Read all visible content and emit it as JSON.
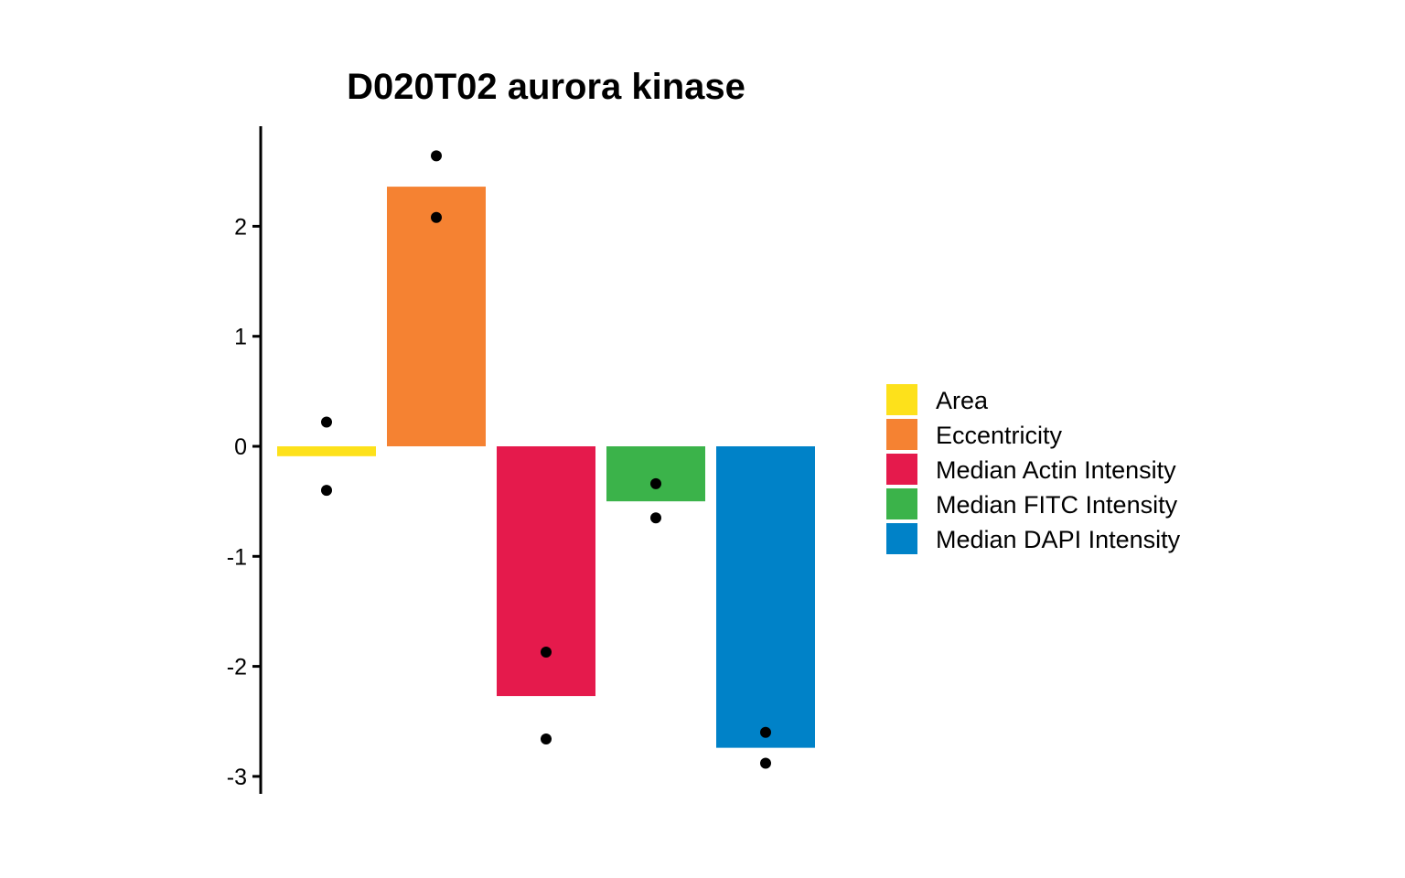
{
  "chart_data": {
    "type": "bar",
    "title": "D020T02 aurora kinase",
    "xlabel": "",
    "ylabel": "",
    "ylim": [
      -3.3,
      2.9
    ],
    "yticks": [
      2,
      1,
      0,
      -1,
      -2,
      -3
    ],
    "ytick_labels": [
      "2",
      "1",
      "0",
      "-1",
      "-2",
      "-3"
    ],
    "grid": false,
    "legend_position": "right",
    "categories": [
      "Area",
      "Eccentricity",
      "Median Actin Intensity",
      "Median FITC Intensity",
      "Median DAPI Intensity"
    ],
    "values": [
      -0.09,
      2.36,
      -2.27,
      -0.5,
      -2.74
    ],
    "colors": [
      "#FDE11B",
      "#F58232",
      "#E51A4C",
      "#3BB34A",
      "#0082C8"
    ],
    "points": [
      [
        0.22,
        -0.4
      ],
      [
        2.64,
        2.08
      ],
      [
        -1.87,
        -2.66
      ],
      [
        -0.34,
        -0.65
      ],
      [
        -2.6,
        -2.88
      ]
    ],
    "legend": [
      {
        "label": "Area",
        "color": "#FDE11B"
      },
      {
        "label": "Eccentricity",
        "color": "#F58232"
      },
      {
        "label": "Median Actin Intensity",
        "color": "#E51A4C"
      },
      {
        "label": "Median FITC Intensity",
        "color": "#3BB34A"
      },
      {
        "label": "Median DAPI Intensity",
        "color": "#0082C8"
      }
    ]
  }
}
